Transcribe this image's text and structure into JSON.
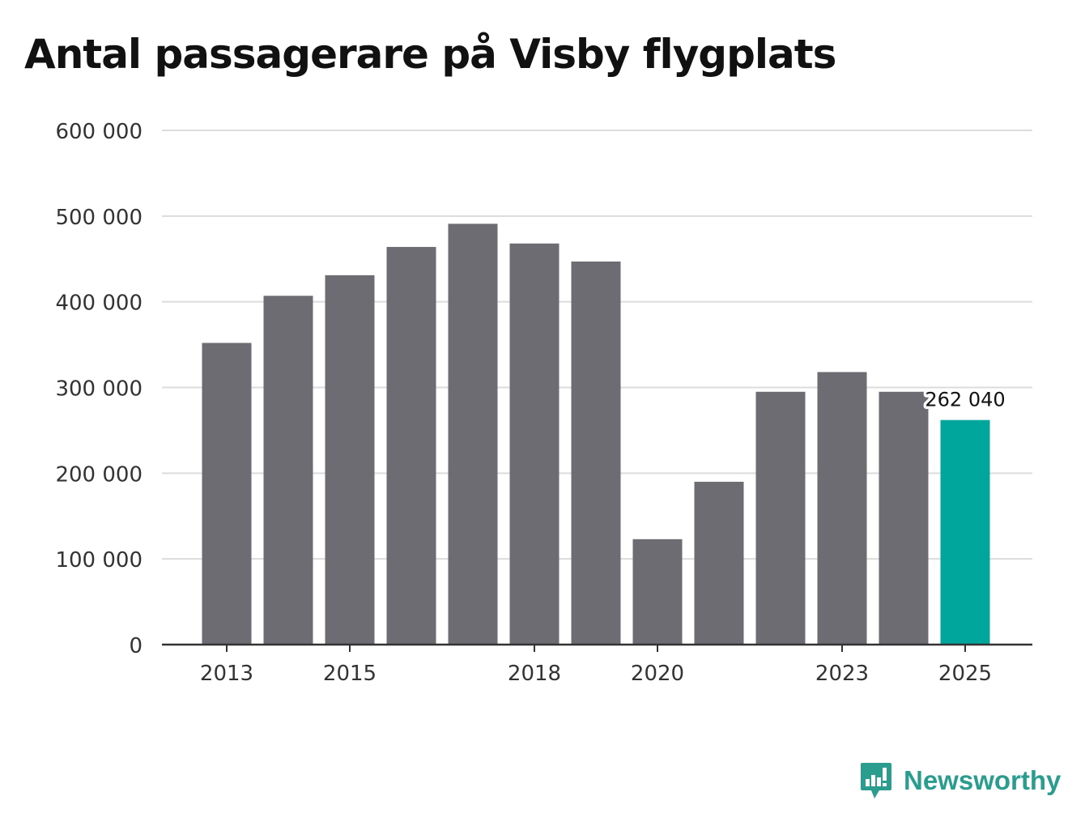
{
  "colors": {
    "bar": "#6d6c73",
    "highlight": "#00a69c",
    "grid": "#dcdcdc",
    "axis": "#333333",
    "text": "#333333",
    "brand": "#2a9d8f"
  },
  "brand": {
    "name": "Newsworthy",
    "icon": "newsworthy-logo-icon"
  },
  "chart_data": {
    "type": "bar",
    "title": "Antal passagerare på Visby flygplats",
    "xlabel": "",
    "ylabel": "",
    "ylim": [
      0,
      600000
    ],
    "yticks": [
      0,
      100000,
      200000,
      300000,
      400000,
      500000,
      600000
    ],
    "ytick_labels": [
      "0",
      "100 000",
      "200 000",
      "300 000",
      "400 000",
      "500 000",
      "600 000"
    ],
    "categories": [
      "2013",
      "2014",
      "2015",
      "2016",
      "2017",
      "2018",
      "2019",
      "2020",
      "2021",
      "2022",
      "2023",
      "2024",
      "2025"
    ],
    "x_tick_labels": [
      "2013",
      "2015",
      "2018",
      "2020",
      "2023",
      "2025"
    ],
    "values": [
      352000,
      407000,
      431000,
      464000,
      491000,
      468000,
      447000,
      123000,
      190000,
      295000,
      318000,
      295000,
      262040
    ],
    "highlight_index": 12,
    "annotation": {
      "category": "2025",
      "text": "262 040"
    },
    "grid": true
  }
}
